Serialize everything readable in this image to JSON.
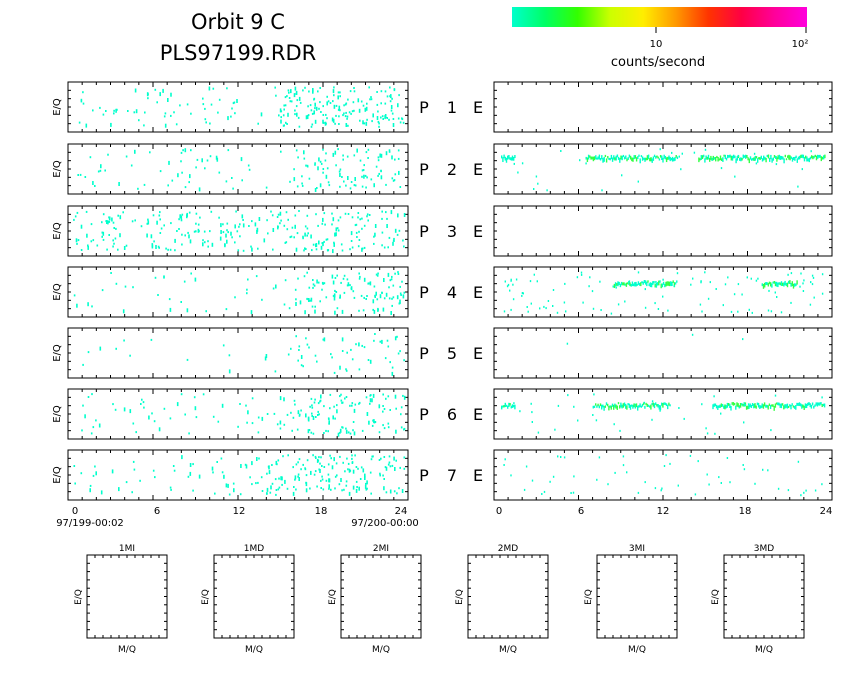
{
  "header": {
    "title_line1": "Orbit 9 C",
    "title_line2": "PLS97199.RDR"
  },
  "colorbar": {
    "colors": [
      "#00ffcc",
      "#00ff66",
      "#33ff00",
      "#ccff00",
      "#ffee00",
      "#ff9900",
      "#ff3300",
      "#ff0044",
      "#ff0099",
      "#ff00dd"
    ],
    "tick_labels": [
      "10",
      "10²"
    ],
    "unit_label": "counts/second"
  },
  "panel_labels": {
    "ylabel": "E/Q",
    "rows": [
      {
        "p_label": "P",
        "number": "1",
        "e_label": "E"
      },
      {
        "p_label": "P",
        "number": "2",
        "e_label": "E"
      },
      {
        "p_label": "P",
        "number": "3",
        "e_label": "E"
      },
      {
        "p_label": "P",
        "number": "4",
        "e_label": "E"
      },
      {
        "p_label": "P",
        "number": "5",
        "e_label": "E"
      },
      {
        "p_label": "P",
        "number": "6",
        "e_label": "E"
      },
      {
        "p_label": "P",
        "number": "7",
        "e_label": "E"
      }
    ]
  },
  "time_axis": {
    "ticks": [
      "0",
      "6",
      "12",
      "18",
      "24"
    ],
    "start_label": "97/199-00:02",
    "end_label": "97/200-00:00"
  },
  "mass_panels": {
    "titles": [
      "1MI",
      "1MD",
      "2MI",
      "2MD",
      "3MI",
      "3MD"
    ],
    "xlabel": "M/Q",
    "ylabel": "E/Q"
  },
  "chart_data": {
    "type": "heatmap",
    "x_range_hours": [
      0,
      24
    ],
    "x_ticks": [
      0,
      6,
      12,
      18,
      24
    ],
    "color_scale": "log",
    "color_range_counts_per_second": [
      1,
      100
    ],
    "left_column": [
      {
        "row": "P 1",
        "density": 0.55,
        "bias_hours": [
          15,
          24
        ]
      },
      {
        "row": "P 2",
        "density": 0.35,
        "bias_hours": [
          16,
          24
        ]
      },
      {
        "row": "P 3",
        "density": 0.65,
        "bias_hours": [
          0,
          24
        ]
      },
      {
        "row": "P 4",
        "density": 0.35,
        "bias_hours": [
          16,
          24
        ]
      },
      {
        "row": "P 5",
        "density": 0.15,
        "bias_hours": [
          16,
          24
        ]
      },
      {
        "row": "P 6",
        "density": 0.4,
        "bias_hours": [
          16,
          24
        ]
      },
      {
        "row": "P 7",
        "density": 0.5,
        "bias_hours": [
          14,
          24
        ]
      }
    ],
    "right_column": [
      {
        "row": "E 1",
        "bands": [],
        "scatter_density": 0
      },
      {
        "row": "E 2",
        "bands": [
          {
            "start_h": 0.5,
            "end_h": 1.5,
            "level": 0.25
          },
          {
            "start_h": 6.5,
            "end_h": 13.0,
            "level": 0.25
          },
          {
            "start_h": 14.5,
            "end_h": 23.5,
            "level": 0.25
          }
        ],
        "scatter_density": 0.1
      },
      {
        "row": "E 3",
        "bands": [],
        "scatter_density": 0
      },
      {
        "row": "E 4",
        "bands": [
          {
            "start_h": 8.5,
            "end_h": 13.0,
            "level": 0.3
          },
          {
            "start_h": 19.0,
            "end_h": 21.5,
            "level": 0.3
          }
        ],
        "scatter_density": 0.35
      },
      {
        "row": "E 5",
        "bands": [],
        "scatter_density": 0.01
      },
      {
        "row": "E 6",
        "bands": [
          {
            "start_h": 0.5,
            "end_h": 1.5,
            "level": 0.3
          },
          {
            "start_h": 7.0,
            "end_h": 12.5,
            "level": 0.3
          },
          {
            "start_h": 15.5,
            "end_h": 23.5,
            "level": 0.3
          }
        ],
        "scatter_density": 0.12
      },
      {
        "row": "E 7",
        "bands": [],
        "scatter_density": 0.18
      }
    ]
  }
}
